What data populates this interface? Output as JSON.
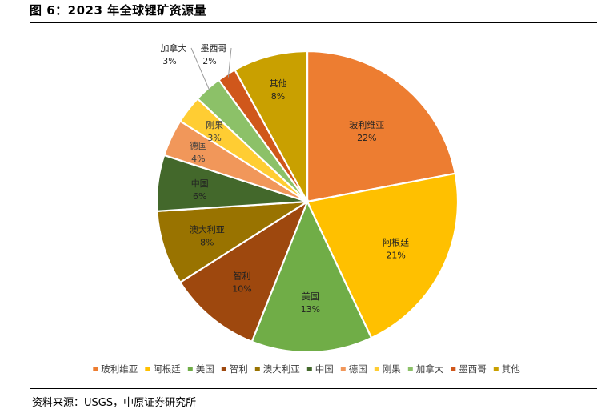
{
  "header": {
    "title": "图 6：2023 年全球锂矿资源量"
  },
  "footer": {
    "source": "资料来源：USGS，中原证券研究所"
  },
  "chart_data": {
    "type": "pie",
    "title": "",
    "unit": "%",
    "legend_position": "bottom",
    "categories": [
      "玻利维亚",
      "阿根廷",
      "美国",
      "智利",
      "澳大利亚",
      "中国",
      "德国",
      "刚果",
      "加拿大",
      "墨西哥",
      "其他"
    ],
    "values": [
      22,
      21,
      13,
      10,
      8,
      6,
      4,
      3,
      3,
      2,
      8
    ],
    "colors": [
      "#ED7D31",
      "#FFC000",
      "#70AD47",
      "#9E480E",
      "#997300",
      "#43682B",
      "#F1975A",
      "#FFCD33",
      "#8CC168",
      "#D0571B",
      "#C9A000"
    ],
    "labels": [
      "22%",
      "21%",
      "13%",
      "10%",
      "8%",
      "6%",
      "4%",
      "3%",
      "3%",
      "2%",
      "8%"
    ]
  }
}
